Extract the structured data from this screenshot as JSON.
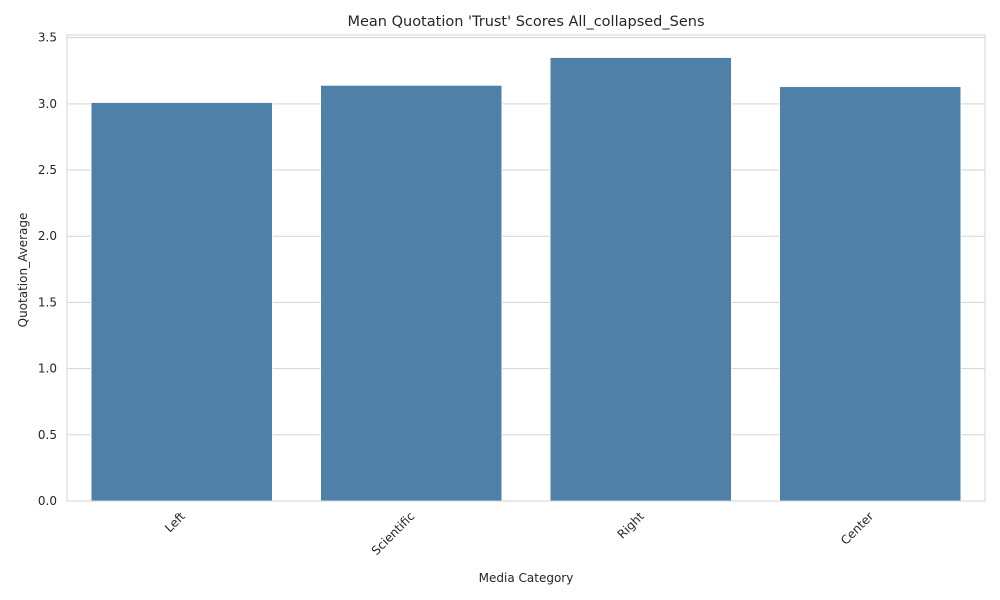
{
  "chart_data": {
    "type": "bar",
    "title": "Mean Quotation 'Trust' Scores All_collapsed_Sens",
    "xlabel": "Media Category",
    "ylabel": "Quotation_Average",
    "categories": [
      "Left",
      "Scientific",
      "Right",
      "Center"
    ],
    "values": [
      3.01,
      3.14,
      3.35,
      3.13
    ],
    "ylim": [
      0,
      3.52
    ],
    "yticks": [
      0.0,
      0.5,
      1.0,
      1.5,
      2.0,
      2.5,
      3.0,
      3.5
    ],
    "ytick_labels": [
      "0.0",
      "0.5",
      "1.0",
      "1.5",
      "2.0",
      "2.5",
      "3.0",
      "3.5"
    ],
    "bar_color": "#4f81a8",
    "grid": true,
    "x_tick_rotation": "45 degrees"
  }
}
